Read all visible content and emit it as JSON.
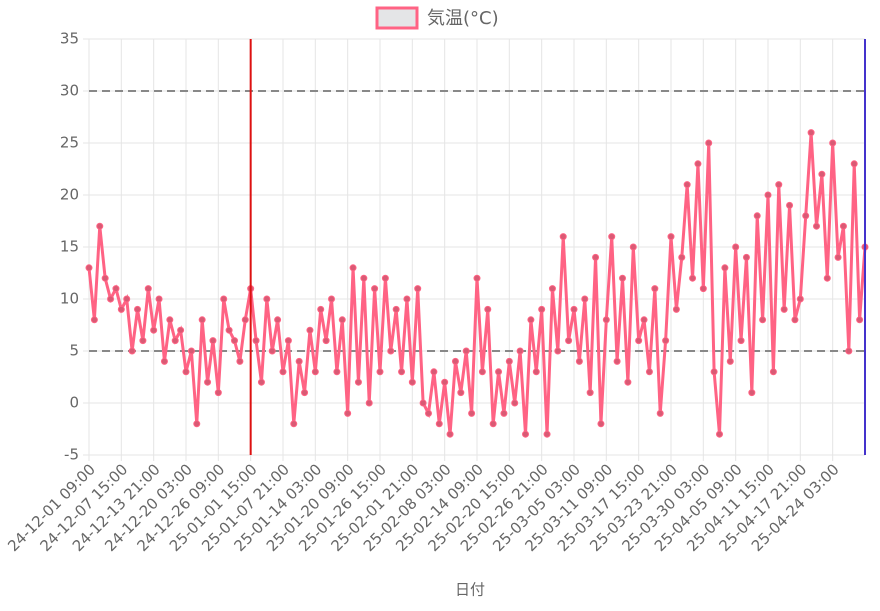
{
  "chart_data": {
    "type": "line",
    "legend_position": "top",
    "x_label": "日付",
    "x": [
      0,
      25,
      50,
      75,
      100,
      125,
      150,
      175,
      200,
      225,
      250,
      275,
      300,
      325,
      350,
      375,
      400,
      425,
      450,
      475,
      500,
      525,
      550,
      575,
      600,
      625,
      650,
      675,
      700,
      725,
      750,
      775,
      800,
      825,
      850,
      875,
      900,
      925,
      950,
      975,
      1000,
      1025,
      1050,
      1075,
      1100,
      1125,
      1150,
      1175,
      1200,
      1225,
      1250,
      1275,
      1300,
      1325,
      1350,
      1375,
      1400,
      1425,
      1450,
      1475,
      1500,
      1525,
      1550,
      1575,
      1600,
      1625,
      1650,
      1675,
      1700,
      1725,
      1750,
      1775,
      1800,
      1825,
      1850,
      1875,
      1900,
      1925,
      1950,
      1975,
      2000,
      2025,
      2050,
      2075,
      2100,
      2125,
      2150,
      2175,
      2200,
      2225,
      2250,
      2275,
      2300,
      2325,
      2350,
      2375,
      2400,
      2425,
      2450,
      2475,
      2500,
      2525,
      2550,
      2575,
      2600,
      2625,
      2650,
      2675,
      2700,
      2725,
      2750,
      2775,
      2800,
      2825,
      2850,
      2875,
      2900,
      2925,
      2950,
      2975,
      3000,
      3025,
      3050,
      3075,
      3100,
      3125,
      3150,
      3175,
      3200,
      3225,
      3250,
      3275,
      3300,
      3325,
      3350,
      3375,
      3400,
      3425,
      3450,
      3475,
      3500,
      3525,
      3550,
      3575,
      3600
    ],
    "series": [
      {
        "name": "気温(°C)",
        "color": "#ff6384",
        "legend_fill": "#e4e5e7",
        "values": [
          13,
          8,
          17,
          12,
          10,
          11,
          9,
          10,
          5,
          9,
          6,
          11,
          7,
          10,
          4,
          8,
          6,
          7,
          3,
          5,
          -2,
          8,
          2,
          6,
          1,
          10,
          7,
          6,
          4,
          8,
          11,
          6,
          2,
          10,
          5,
          8,
          3,
          6,
          -2,
          4,
          1,
          7,
          3,
          9,
          6,
          10,
          3,
          8,
          -1,
          13,
          2,
          12,
          0,
          11,
          3,
          12,
          5,
          9,
          3,
          10,
          2,
          11,
          0,
          -1,
          3,
          -2,
          2,
          -3,
          4,
          1,
          5,
          -1,
          12,
          3,
          9,
          -2,
          3,
          -1,
          4,
          0,
          5,
          -3,
          8,
          3,
          9,
          -3,
          11,
          5,
          16,
          6,
          9,
          4,
          10,
          1,
          14,
          -2,
          8,
          16,
          4,
          12,
          2,
          15,
          6,
          8,
          3,
          11,
          -1,
          6,
          16,
          9,
          14,
          21,
          12,
          23,
          11,
          25,
          3,
          -3,
          13,
          4,
          15,
          6,
          14,
          1,
          18,
          8,
          20,
          3,
          21,
          9,
          19,
          8,
          10,
          18,
          26,
          17,
          22,
          12,
          25,
          14,
          17,
          5,
          23,
          8,
          15
        ]
      }
    ],
    "xlim": [
      0,
      3600
    ],
    "xticks": [
      {
        "value": 0,
        "label": "24-12-01 09:00"
      },
      {
        "value": 150,
        "label": "24-12-07 15:00"
      },
      {
        "value": 300,
        "label": "24-12-13 21:00"
      },
      {
        "value": 450,
        "label": "24-12-20 03:00"
      },
      {
        "value": 600,
        "label": "24-12-26 09:00"
      },
      {
        "value": 750,
        "label": "25-01-01 15:00"
      },
      {
        "value": 900,
        "label": "25-01-07 21:00"
      },
      {
        "value": 1050,
        "label": "25-01-14 03:00"
      },
      {
        "value": 1200,
        "label": "25-01-20 09:00"
      },
      {
        "value": 1350,
        "label": "25-01-26 15:00"
      },
      {
        "value": 1500,
        "label": "25-02-01 21:00"
      },
      {
        "value": 1650,
        "label": "25-02-08 03:00"
      },
      {
        "value": 1800,
        "label": "25-02-14 09:00"
      },
      {
        "value": 1950,
        "label": "25-02-20 15:00"
      },
      {
        "value": 2100,
        "label": "25-02-26 21:00"
      },
      {
        "value": 2250,
        "label": "25-03-05 03:00"
      },
      {
        "value": 2400,
        "label": "25-03-11 09:00"
      },
      {
        "value": 2550,
        "label": "25-03-17 15:00"
      },
      {
        "value": 2700,
        "label": "25-03-23 21:00"
      },
      {
        "value": 2850,
        "label": "25-03-30 03:00"
      },
      {
        "value": 3000,
        "label": "25-04-05 09:00"
      },
      {
        "value": 3150,
        "label": "25-04-11 15:00"
      },
      {
        "value": 3300,
        "label": "25-04-17 21:00"
      },
      {
        "value": 3450,
        "label": "25-04-24 03:00"
      }
    ],
    "ylim": [
      -5,
      35
    ],
    "yticks": [
      -5,
      0,
      5,
      10,
      15,
      20,
      25,
      30,
      35
    ],
    "grid": true,
    "hlines": [
      {
        "value": 30,
        "color": "#888888"
      },
      {
        "value": 5,
        "color": "#888888"
      }
    ],
    "vlines": [
      {
        "value": 750,
        "color": "#dd1111"
      },
      {
        "value": 3600,
        "color": "#4433cc"
      }
    ]
  }
}
